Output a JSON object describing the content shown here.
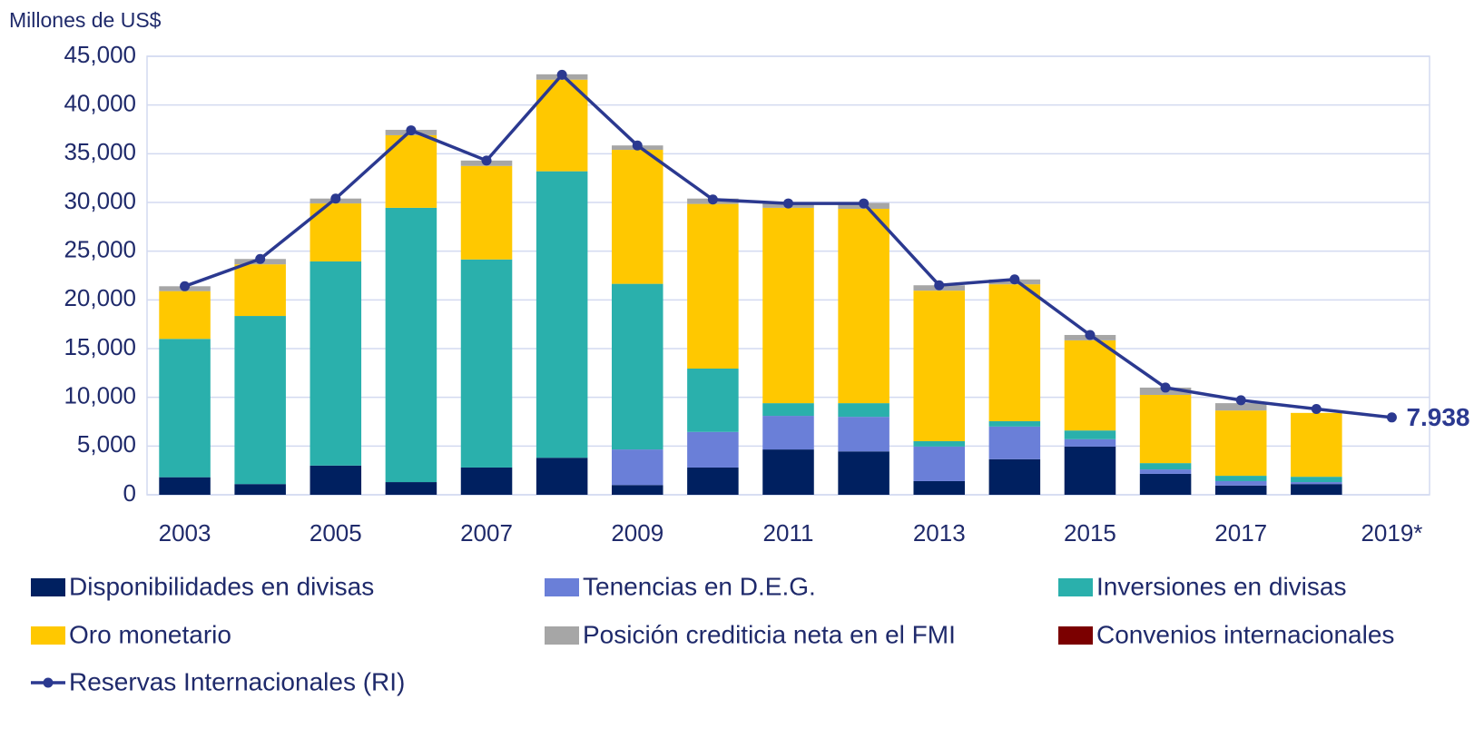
{
  "chart_data": {
    "type": "bar",
    "stacked": true,
    "y_label": "Millones de US$",
    "categories": [
      "2003",
      null,
      "2005",
      null,
      "2007",
      null,
      "2009",
      null,
      "2011",
      null,
      "2013",
      null,
      "2015",
      null,
      "2017",
      null,
      "2019*"
    ],
    "series": [
      {
        "name": "Disponibilidades en divisas",
        "color": "#002060",
        "values": [
          1800,
          1100,
          3000,
          1300,
          2800,
          3800,
          1000,
          2800,
          4650,
          4450,
          1400,
          3650,
          4950,
          2150,
          950,
          1100,
          null
        ]
      },
      {
        "name": "Tenencias en D.E.G.",
        "color": "#6a7fd8",
        "values": [
          0,
          0,
          0,
          0,
          0,
          0,
          3650,
          3650,
          3450,
          3550,
          3550,
          3350,
          750,
          450,
          450,
          200,
          null
        ]
      },
      {
        "name": "Inversiones en divisas",
        "color": "#2ab0ac",
        "values": [
          14200,
          17250,
          20950,
          28150,
          21350,
          29400,
          17000,
          6500,
          1300,
          1400,
          550,
          550,
          900,
          650,
          550,
          550,
          null
        ]
      },
      {
        "name": "Oro monetario",
        "color": "#ffc800",
        "values": [
          4900,
          5300,
          5950,
          7450,
          9600,
          9400,
          13750,
          16900,
          20050,
          19950,
          15450,
          14050,
          9250,
          7000,
          6700,
          6550,
          null
        ]
      },
      {
        "name": "Posición crediticia neta en el FMI",
        "color": "#a6a6a6",
        "values": [
          500,
          550,
          500,
          550,
          550,
          550,
          450,
          550,
          500,
          600,
          550,
          500,
          550,
          750,
          750,
          0,
          null
        ]
      },
      {
        "name": "Convenios internacionales",
        "color": "#7b0000",
        "values": [
          0,
          0,
          0,
          0,
          0,
          0,
          0,
          0,
          0,
          0,
          0,
          0,
          0,
          0,
          0,
          0,
          null
        ]
      },
      {
        "name": "Reservas Internacionales (RI)",
        "type": "line",
        "color": "#2b3990",
        "values": [
          21400,
          24200,
          30400,
          37400,
          34300,
          43100,
          35850,
          30300,
          29900,
          29900,
          21500,
          22100,
          16400,
          11000,
          9700,
          8800,
          7938
        ],
        "value_labels": [
          null,
          null,
          null,
          null,
          null,
          null,
          null,
          null,
          null,
          null,
          null,
          null,
          null,
          null,
          null,
          null,
          "7.938"
        ]
      }
    ],
    "ylim": [
      0,
      45000
    ],
    "yticks": [
      0,
      {
        "value": 5000,
        "label": "5,000"
      },
      {
        "value": 10000,
        "label": "10,000"
      },
      {
        "value": 15000,
        "label": "15,000"
      },
      {
        "value": 20000,
        "label": "20,000"
      },
      {
        "value": 25000,
        "label": "25,000"
      },
      {
        "value": 30000,
        "label": "30,000"
      },
      {
        "value": 35000,
        "label": "35,000"
      },
      {
        "value": 40000,
        "label": "40,000"
      },
      {
        "value": 45000,
        "label": "45,000"
      }
    ],
    "grid": true,
    "legend": "bottom"
  }
}
